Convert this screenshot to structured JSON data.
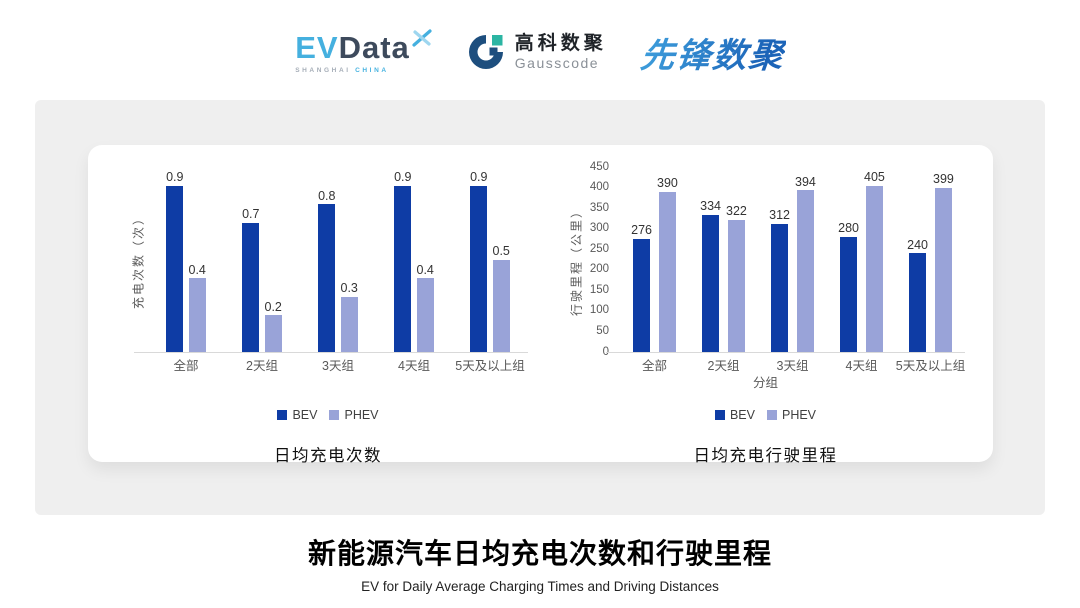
{
  "header": {
    "evdata": {
      "ev": "EV",
      "data": "Data",
      "sub_left": "SHANGHAI",
      "sub_right": "CHINA"
    },
    "gausscode": {
      "cn": "高科数聚",
      "en": "Gausscode"
    },
    "pioneer": {
      "cn": "先锋数聚"
    }
  },
  "colors": {
    "bev": "#0e3ca5",
    "phev": "#99a3d8",
    "axis_line": "#d9d9d9",
    "panel_bg": "#efefef"
  },
  "chart_data": [
    {
      "type": "bar",
      "title": "日均充电次数",
      "categories": [
        "全部",
        "2天组",
        "3天组",
        "4天组",
        "5天及以上组"
      ],
      "series": [
        {
          "name": "BEV",
          "color": "#0e3ca5",
          "values": [
            0.9,
            0.7,
            0.8,
            0.9,
            0.9
          ]
        },
        {
          "name": "PHEV",
          "color": "#99a3d8",
          "values": [
            0.4,
            0.2,
            0.3,
            0.4,
            0.5
          ]
        }
      ],
      "ylabel": "充电次数（次）",
      "xlabel": "",
      "ylim": [
        0,
        1
      ],
      "yticks": [],
      "grid": false,
      "legend_position": "bottom",
      "value_labels": true
    },
    {
      "type": "bar",
      "title": "日均充电行驶里程",
      "categories": [
        "全部",
        "2天组",
        "3天组",
        "4天组",
        "5天及以上组"
      ],
      "series": [
        {
          "name": "BEV",
          "color": "#0e3ca5",
          "values": [
            276,
            334,
            312,
            280,
            240
          ]
        },
        {
          "name": "PHEV",
          "color": "#99a3d8",
          "values": [
            390,
            322,
            394,
            405,
            399
          ]
        }
      ],
      "ylabel": "行驶里程（公里）",
      "xlabel": "分组",
      "ylim": [
        0,
        450
      ],
      "yticks": [
        0,
        50,
        100,
        150,
        200,
        250,
        300,
        350,
        400,
        450
      ],
      "grid": false,
      "legend_position": "bottom",
      "value_labels": true
    }
  ],
  "footer": {
    "title": "新能源汽车日均充电次数和行驶里程",
    "subtitle": "EV for Daily Average Charging Times and Driving Distances"
  }
}
